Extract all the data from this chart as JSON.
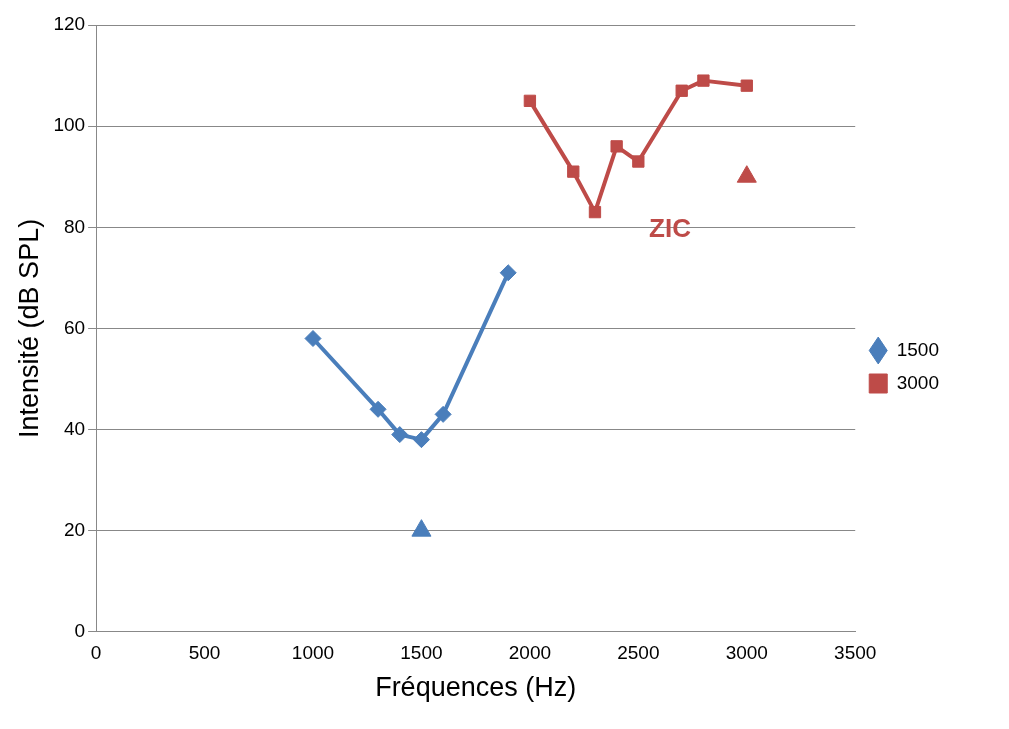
{
  "chart_data": {
    "type": "line",
    "xlabel": "Fréquences (Hz)",
    "ylabel": "Intensité (dB SPL)",
    "xlim": [
      0,
      3500
    ],
    "xticks": [
      0,
      500,
      1000,
      1500,
      2000,
      2500,
      3000,
      3500
    ],
    "ylim": [
      0,
      120
    ],
    "yticks": [
      0,
      20,
      40,
      60,
      80,
      100,
      120
    ],
    "grid": "y",
    "legend": "right",
    "line_style": "solid",
    "series": [
      {
        "name": "1500",
        "color": "#4a7ebb",
        "marker": "diamond",
        "x": [
          1000,
          1300,
          1400,
          1500,
          1600,
          1900
        ],
        "values": [
          58,
          44,
          39,
          38,
          43,
          71
        ]
      },
      {
        "name": "3000",
        "color": "#be4b48",
        "marker": "square",
        "x": [
          2000,
          2200,
          2300,
          2400,
          2500,
          2700,
          2800,
          3000
        ],
        "values": [
          105,
          91,
          83,
          96,
          93,
          107,
          109,
          108
        ]
      },
      {
        "type": "scatter",
        "color": "#4a7ebb",
        "marker": "triangle",
        "x": [
          1500
        ],
        "values": [
          20
        ]
      },
      {
        "type": "scatter",
        "color": "#be4b48",
        "marker": "triangle",
        "x": [
          3000
        ],
        "values": [
          90
        ]
      }
    ],
    "annotations": [
      "ZIC"
    ]
  }
}
